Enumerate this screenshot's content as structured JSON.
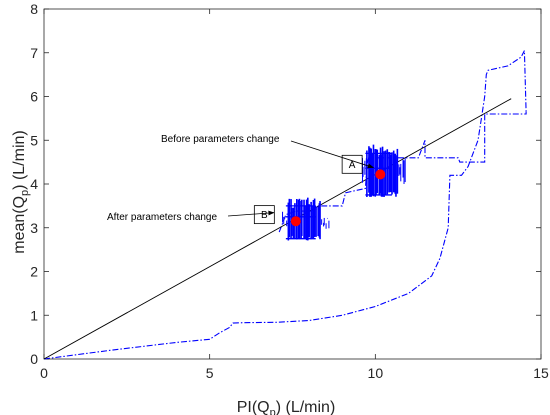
{
  "chart_data": {
    "type": "line",
    "title": "",
    "xlabel": "PI(Q",
    "xlabel_sub": "p",
    "xlabel_suffix": ") (L/min)",
    "ylabel": "mean(Q",
    "ylabel_sub": "p",
    "ylabel_suffix": ") (L/min)",
    "xlim": [
      0,
      15
    ],
    "ylim": [
      0,
      8
    ],
    "xticks": [
      0,
      5,
      10,
      15
    ],
    "yticks": [
      0,
      1,
      2,
      3,
      4,
      5,
      6,
      7,
      8
    ],
    "grid": false,
    "colors": {
      "envelope": "#0000ff",
      "measurements": "#0000ff",
      "reference_line": "#000000",
      "points": "#ff0000"
    },
    "reference_line": {
      "points": [
        [
          0,
          0
        ],
        [
          14.1,
          5.95
        ]
      ]
    },
    "envelope": {
      "style": "dash-dot",
      "lower": [
        [
          0,
          0
        ],
        [
          2,
          0.2
        ],
        [
          4,
          0.38
        ],
        [
          5,
          0.45
        ],
        [
          5.3,
          0.6
        ],
        [
          5.6,
          0.72
        ],
        [
          5.7,
          0.82
        ],
        [
          6,
          0.83
        ],
        [
          7,
          0.84
        ],
        [
          8,
          0.88
        ],
        [
          9,
          1.0
        ],
        [
          10,
          1.2
        ],
        [
          11,
          1.5
        ],
        [
          11.7,
          1.9
        ],
        [
          11.95,
          2.3
        ],
        [
          12.2,
          3.0
        ],
        [
          12.25,
          4.2
        ],
        [
          12.6,
          4.2
        ],
        [
          12.8,
          4.4
        ],
        [
          13.1,
          5.0
        ],
        [
          13.2,
          5.5
        ],
        [
          13.3,
          6.0
        ],
        [
          13.35,
          6.5
        ],
        [
          13.4,
          6.6
        ],
        [
          14.0,
          6.7
        ],
        [
          14.4,
          6.9
        ],
        [
          14.5,
          7.05
        ],
        [
          14.55,
          5.65
        ]
      ],
      "upper": [
        [
          7.1,
          2.9
        ],
        [
          7.3,
          3.3
        ],
        [
          7.6,
          3.38
        ],
        [
          8.1,
          3.38
        ],
        [
          8.2,
          3.5
        ],
        [
          9.0,
          3.5
        ],
        [
          9.1,
          3.8
        ],
        [
          9.4,
          3.85
        ],
        [
          9.7,
          3.9
        ],
        [
          9.75,
          4.45
        ],
        [
          9.8,
          4.6
        ],
        [
          10.8,
          4.6
        ],
        [
          11.3,
          4.6
        ],
        [
          11.5,
          5.0
        ],
        [
          11.5,
          4.6
        ],
        [
          12.5,
          4.6
        ],
        [
          12.55,
          4.5
        ],
        [
          13.3,
          4.5
        ],
        [
          13.3,
          5.6
        ],
        [
          14.55,
          5.6
        ],
        [
          14.55,
          5.65
        ]
      ]
    },
    "measurement_clusters": [
      {
        "x_range": [
          7.2,
          8.6
        ],
        "y_range": [
          2.7,
          3.7
        ]
      },
      {
        "x_range": [
          9.6,
          10.9
        ],
        "y_range": [
          3.7,
          4.9
        ]
      }
    ],
    "points": [
      {
        "label": "A",
        "x": 10.15,
        "y": 4.22
      },
      {
        "label": "B",
        "x": 7.6,
        "y": 3.15
      }
    ],
    "annotations": [
      {
        "text": "Before parameters change",
        "arrow_to": [
          10.0,
          4.33
        ]
      },
      {
        "text": "After parameters change",
        "arrow_to": [
          7.0,
          3.3
        ]
      }
    ],
    "box_labels": [
      {
        "text": "A",
        "x": 9.3,
        "y": 4.45
      },
      {
        "text": "B",
        "x": 6.65,
        "y": 3.3
      }
    ]
  }
}
